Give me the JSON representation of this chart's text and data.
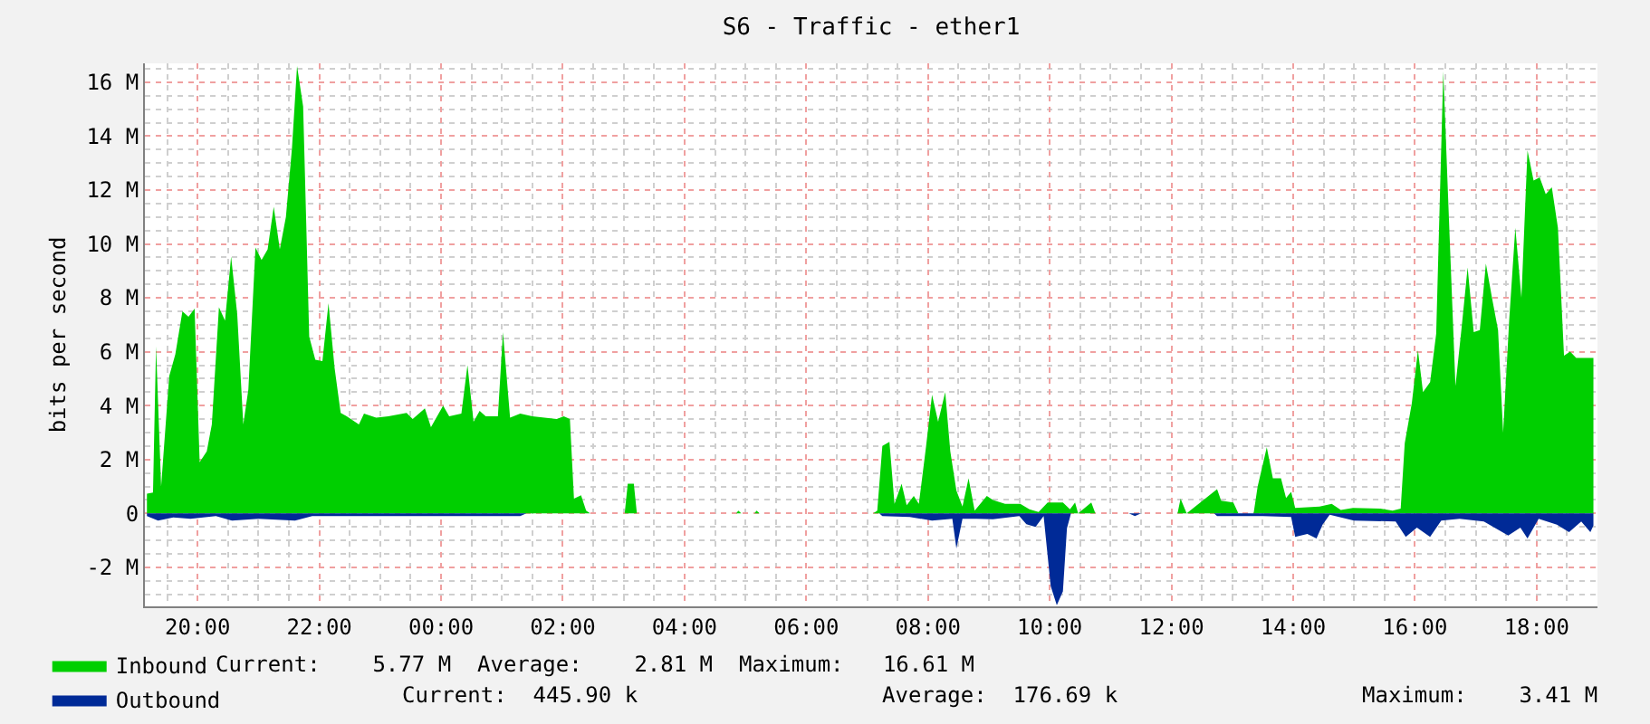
{
  "chart_data": {
    "type": "area",
    "title": "S6 - Traffic - ether1",
    "ylabel": "bits per second",
    "xlim": [
      "--01-01T19:08",
      "--01-02T19:00"
    ],
    "ylim": [
      -3.45,
      16.7
    ],
    "xticks": [
      {
        "value": "--01-01T20:00",
        "label": "20:00"
      },
      {
        "value": "--01-01T22:00",
        "label": "22:00"
      },
      {
        "value": "--01-02T00:00",
        "label": "00:00"
      },
      {
        "value": "--01-02T02:00",
        "label": "02:00"
      },
      {
        "value": "--01-02T04:00",
        "label": "04:00"
      },
      {
        "value": "--01-02T06:00",
        "label": "06:00"
      },
      {
        "value": "--01-02T08:00",
        "label": "08:00"
      },
      {
        "value": "--01-02T10:00",
        "label": "10:00"
      },
      {
        "value": "--01-02T12:00",
        "label": "12:00"
      },
      {
        "value": "--01-02T14:00",
        "label": "14:00"
      },
      {
        "value": "--01-02T16:00",
        "label": "16:00"
      },
      {
        "value": "--01-02T18:00",
        "label": "18:00"
      }
    ],
    "yticks": [
      {
        "value": -2,
        "label": "-2 M"
      },
      0,
      {
        "value": 2,
        "label": "2 M"
      },
      {
        "value": 4,
        "label": "4 M"
      },
      {
        "value": 6,
        "label": "6 M"
      },
      {
        "value": 8,
        "label": "8 M"
      },
      {
        "value": 10,
        "label": "10 M"
      },
      {
        "value": 12,
        "label": "12 M"
      },
      {
        "value": 14,
        "label": "14 M"
      },
      {
        "value": 16,
        "label": "16 M"
      }
    ],
    "grid": true,
    "legend": "bottom left",
    "annotations": [
      "Current:    5.77 M  Average:    2.81 M  Maximum:   16.61 M",
      "Current:  445.90 k",
      "Average:  176.69 k",
      "Maximum:    3.41 M"
    ],
    "series": [
      {
        "name": "Inbound",
        "color": "#00cf00",
        "x": [
          "--01-01T19:10",
          "--01-01T19:16",
          "--01-01T19:19",
          "--01-01T19:24",
          "--01-01T19:32",
          "--01-01T19:38",
          "--01-01T19:45",
          "--01-01T19:51",
          "--01-01T19:57",
          "--01-01T20:02",
          "--01-01T20:09",
          "--01-01T20:14",
          "--01-01T20:21",
          "--01-01T20:27",
          "--01-01T20:33",
          "--01-01T20:39",
          "--01-01T20:45",
          "--01-01T20:50",
          "--01-01T20:57",
          "--01-01T21:03",
          "--01-01T21:09",
          "--01-01T21:15",
          "--01-01T21:21",
          "--01-01T21:27",
          "--01-01T21:33",
          "--01-01T21:38",
          "--01-01T21:44",
          "--01-01T21:50",
          "--01-01T21:56",
          "--01-01T22:03",
          "--01-01T22:09",
          "--01-01T22:15",
          "--01-01T22:21",
          "--01-01T22:27",
          "--01-01T22:39",
          "--01-01T22:44",
          "--01-01T22:56",
          "--01-01T23:08",
          "--01-01T23:26",
          "--01-01T23:32",
          "--01-01T23:44",
          "--01-01T23:50",
          "--01-02T00:02",
          "--01-02T00:08",
          "--01-02T00:20",
          "--01-02T00:26",
          "--01-02T00:32",
          "--01-02T00:38",
          "--01-02T00:44",
          "--01-02T00:56",
          "--01-02T01:01",
          "--01-02T01:08",
          "--01-02T01:18",
          "--01-02T01:30",
          "--01-02T01:42",
          "--01-02T01:54",
          "--01-02T02:01",
          "--01-02T02:07",
          "--01-02T02:11",
          "--01-02T02:18",
          "--01-02T02:23",
          "--01-02T02:27",
          "--01-02T03:01",
          "--01-02T03:04",
          "--01-02T03:10",
          "--01-02T03:13",
          "--01-02T04:51",
          "--01-02T04:53",
          "--01-02T04:56",
          "--01-02T05:09",
          "--01-02T05:11",
          "--01-02T05:14",
          "--01-02T07:06",
          "--01-02T07:10",
          "--01-02T07:15",
          "--01-02T07:22",
          "--01-02T07:27",
          "--01-02T07:34",
          "--01-02T07:39",
          "--01-02T07:46",
          "--01-02T07:51",
          "--01-02T07:58",
          "--01-02T08:04",
          "--01-02T08:10",
          "--01-02T08:17",
          "--01-02T08:22",
          "--01-02T08:28",
          "--01-02T08:34",
          "--01-02T08:40",
          "--01-02T08:46",
          "--01-02T08:58",
          "--01-02T09:04",
          "--01-02T09:16",
          "--01-02T09:31",
          "--01-02T09:40",
          "--01-02T09:49",
          "--01-02T09:58",
          "--01-02T10:13",
          "--01-02T10:20",
          "--01-02T10:25",
          "--01-02T10:28",
          "--01-02T10:41",
          "--01-02T10:45",
          "--01-02T12:06",
          "--01-02T12:09",
          "--01-02T12:15",
          "--01-02T12:45",
          "--01-02T12:49",
          "--01-02T13:01",
          "--01-02T13:06",
          "--01-02T13:21",
          "--01-02T13:25",
          "--01-02T13:34",
          "--01-02T13:40",
          "--01-02T13:48",
          "--01-02T13:53",
          "--01-02T13:58",
          "--01-02T14:02",
          "--01-02T14:26",
          "--01-02T14:38",
          "--01-02T14:47",
          "--01-02T14:59",
          "--01-02T15:26",
          "--01-02T15:38",
          "--01-02T15:46",
          "--01-02T15:50",
          "--01-02T15:57",
          "--01-02T16:03",
          "--01-02T16:08",
          "--01-02T16:15",
          "--01-02T16:21",
          "--01-02T16:28",
          "--01-02T16:34",
          "--01-02T16:40",
          "--01-02T16:46",
          "--01-02T16:52",
          "--01-02T16:58",
          "--01-02T17:04",
          "--01-02T17:10",
          "--01-02T17:16",
          "--01-02T17:22",
          "--01-02T17:27",
          "--01-02T17:33",
          "--01-02T17:39",
          "--01-02T17:45",
          "--01-02T17:51",
          "--01-02T17:57",
          "--01-02T18:03",
          "--01-02T18:09",
          "--01-02T18:15",
          "--01-02T18:21",
          "--01-02T18:27",
          "--01-02T18:33",
          "--01-02T18:39",
          "--01-02T18:56"
        ],
        "values": [
          0.73,
          0.77,
          6.2,
          1.0,
          5.1,
          5.9,
          7.5,
          7.3,
          7.6,
          1.9,
          2.3,
          3.3,
          7.65,
          7.15,
          9.53,
          7.4,
          3.3,
          4.6,
          9.87,
          9.4,
          9.8,
          11.38,
          9.8,
          11.0,
          13.56,
          16.6,
          15.1,
          6.56,
          5.7,
          5.65,
          7.8,
          5.4,
          3.73,
          3.6,
          3.3,
          3.7,
          3.55,
          3.6,
          3.73,
          3.5,
          3.9,
          3.2,
          4.0,
          3.6,
          3.7,
          5.5,
          3.4,
          3.8,
          3.6,
          3.6,
          6.73,
          3.55,
          3.7,
          3.6,
          3.55,
          3.5,
          3.6,
          3.5,
          0.55,
          0.67,
          0.1,
          0,
          0,
          1.1,
          1.1,
          0,
          0,
          0.1,
          0,
          0,
          0.1,
          0,
          0,
          0.1,
          2.5,
          2.65,
          0.35,
          1.1,
          0.3,
          0.65,
          0.35,
          2.45,
          4.4,
          3.4,
          4.5,
          2.3,
          0.85,
          0.25,
          1.3,
          0.1,
          0.65,
          0.5,
          0.35,
          0.35,
          0.15,
          0.05,
          0.4,
          0.4,
          0.15,
          0.4,
          0,
          0.4,
          0,
          0,
          0.55,
          0,
          0.9,
          0.47,
          0.4,
          0,
          0,
          1.0,
          2.45,
          1.3,
          1.3,
          0.57,
          0.8,
          0.2,
          0.25,
          0.35,
          0.13,
          0.2,
          0.18,
          0.1,
          0.18,
          2.6,
          4.1,
          6.05,
          4.5,
          4.87,
          6.67,
          16.4,
          10.5,
          4.73,
          6.87,
          9.13,
          6.73,
          6.8,
          9.27,
          8.0,
          6.8,
          3.0,
          7.2,
          10.6,
          8.0,
          13.47,
          12.35,
          12.47,
          11.85,
          12.1,
          10.6,
          5.85,
          6.0,
          5.77,
          5.77
        ]
      },
      {
        "name": "Outbound",
        "color": "#002a97",
        "x": [
          "--01-01T19:10",
          "--01-01T19:21",
          "--01-01T19:36",
          "--01-01T19:53",
          "--01-01T20:18",
          "--01-01T20:34",
          "--01-01T21:00",
          "--01-01T21:36",
          "--01-01T21:53",
          "--01-01T22:18",
          "--01-02T00:00",
          "--01-02T01:09",
          "--01-02T01:18",
          "--01-02T01:24",
          "--01-02T07:12",
          "--01-02T07:15",
          "--01-02T07:42",
          "--01-02T08:04",
          "--01-02T08:24",
          "--01-02T08:28",
          "--01-02T08:34",
          "--01-02T08:48",
          "--01-02T09:04",
          "--01-02T09:30",
          "--01-02T09:37",
          "--01-02T09:46",
          "--01-02T09:54",
          "--01-02T10:01",
          "--01-02T10:07",
          "--01-02T10:13",
          "--01-02T10:17",
          "--01-02T10:21",
          "--01-02T11:18",
          "--01-02T11:24",
          "--01-02T11:30",
          "--01-02T12:42",
          "--01-02T12:45",
          "--01-02T13:30",
          "--01-02T13:58",
          "--01-02T14:02",
          "--01-02T14:14",
          "--01-02T14:23",
          "--01-02T14:29",
          "--01-02T14:36",
          "--01-02T15:00",
          "--01-02T15:41",
          "--01-02T15:51",
          "--01-02T16:02",
          "--01-02T16:15",
          "--01-02T16:26",
          "--01-02T16:44",
          "--01-02T17:08",
          "--01-02T17:32",
          "--01-02T17:44",
          "--01-02T17:51",
          "--01-02T18:02",
          "--01-02T18:20",
          "--01-02T18:32",
          "--01-02T18:44",
          "--01-02T18:53",
          "--01-02T18:56"
        ],
        "values": [
          -0.1,
          -0.27,
          -0.15,
          -0.2,
          -0.1,
          -0.27,
          -0.2,
          -0.27,
          -0.1,
          -0.1,
          -0.1,
          -0.1,
          -0.1,
          0,
          0,
          -0.1,
          -0.13,
          -0.27,
          -0.2,
          -1.3,
          -0.2,
          -0.2,
          -0.22,
          -0.1,
          -0.4,
          -0.5,
          -0.1,
          -2.7,
          -3.41,
          -2.9,
          -0.55,
          0,
          0,
          -0.1,
          0,
          0,
          -0.1,
          -0.1,
          -0.13,
          -0.87,
          -0.76,
          -0.93,
          -0.42,
          -0.05,
          -0.27,
          -0.3,
          -0.87,
          -0.53,
          -0.87,
          -0.27,
          -0.2,
          -0.3,
          -0.82,
          -0.53,
          -0.93,
          -0.2,
          -0.42,
          -0.7,
          -0.3,
          -0.7,
          -0.45
        ]
      }
    ]
  }
}
